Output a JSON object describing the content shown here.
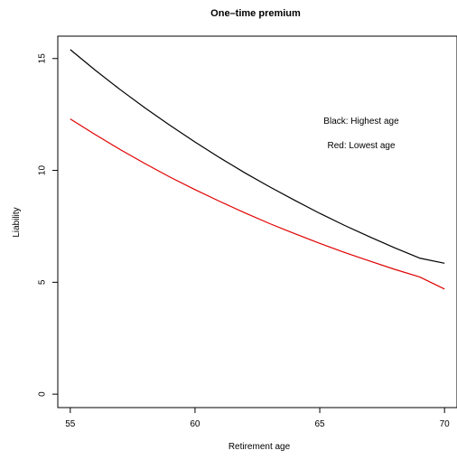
{
  "chart_data": {
    "type": "line",
    "title": "One–time premium",
    "xlabel": "Retirement age",
    "ylabel": "Liability",
    "xlim": [
      54.5,
      70.5
    ],
    "ylim": [
      -0.6,
      16.0
    ],
    "x_ticks": [
      55,
      60,
      65,
      70
    ],
    "y_ticks": [
      0,
      5,
      10,
      15
    ],
    "grid": false,
    "annotations": [
      "Black: Highest age",
      "Red: Lowest age"
    ],
    "series": [
      {
        "color": "#000000",
        "x": [
          55,
          56,
          57,
          58,
          59,
          60,
          61,
          62,
          63,
          64,
          65,
          66,
          67,
          68,
          69,
          70
        ],
        "values": [
          15.4,
          14.48,
          13.61,
          12.79,
          12.01,
          11.27,
          10.56,
          9.89,
          9.26,
          8.66,
          8.08,
          7.54,
          7.03,
          6.54,
          6.08,
          5.85
        ]
      },
      {
        "color": "#e00000",
        "x": [
          55,
          56,
          57,
          58,
          59,
          60,
          61,
          62,
          63,
          64,
          65,
          66,
          67,
          68,
          69,
          70
        ],
        "values": [
          12.3,
          11.6,
          10.93,
          10.3,
          9.7,
          9.14,
          8.61,
          8.1,
          7.62,
          7.17,
          6.74,
          6.33,
          5.95,
          5.58,
          5.24,
          4.7
        ]
      }
    ]
  }
}
